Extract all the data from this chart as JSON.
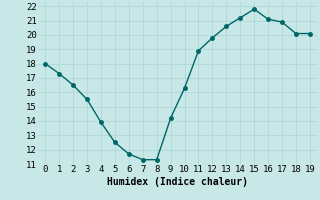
{
  "x": [
    0,
    1,
    2,
    3,
    4,
    5,
    6,
    7,
    8,
    9,
    10,
    11,
    12,
    13,
    14,
    15,
    16,
    17,
    18,
    19
  ],
  "y": [
    18.0,
    17.3,
    16.5,
    15.5,
    13.9,
    12.5,
    11.7,
    11.3,
    11.3,
    14.2,
    16.3,
    18.9,
    19.8,
    20.6,
    21.2,
    21.8,
    21.1,
    20.9,
    20.1,
    20.1
  ],
  "line_color": "#006666",
  "marker_color": "#006666",
  "bg_color": "#c8e8e8",
  "grid_color": "#b0d8d8",
  "xlabel": "Humidex (Indice chaleur)",
  "xlabel_fontsize": 7,
  "tick_fontsize": 6.5,
  "ylim": [
    11,
    22.3
  ],
  "xlim": [
    -0.5,
    19.5
  ],
  "yticks": [
    11,
    12,
    13,
    14,
    15,
    16,
    17,
    18,
    19,
    20,
    21,
    22
  ],
  "xticks": [
    0,
    1,
    2,
    3,
    4,
    5,
    6,
    7,
    8,
    9,
    10,
    11,
    12,
    13,
    14,
    15,
    16,
    17,
    18,
    19
  ],
  "marker_size": 2.5,
  "line_width": 1.0
}
